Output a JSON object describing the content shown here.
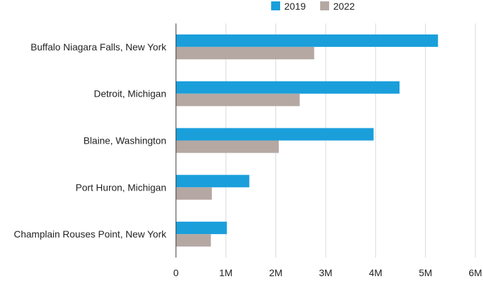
{
  "chart_data": {
    "type": "bar",
    "orientation": "horizontal",
    "categories": [
      "Buffalo Niagara Falls, New York",
      "Detroit, Michigan",
      "Blaine, Washington",
      "Port Huron, Michigan",
      "Champlain Rouses Point, New York"
    ],
    "series": [
      {
        "name": "2019",
        "color": "#1a9fdb",
        "values": [
          5250000,
          4480000,
          3960000,
          1470000,
          1020000
        ]
      },
      {
        "name": "2022",
        "color": "#b5a8a3",
        "values": [
          2770000,
          2480000,
          2060000,
          720000,
          700000
        ]
      }
    ],
    "xlim": [
      0,
      6000000
    ],
    "xticks": [
      0,
      1000000,
      2000000,
      3000000,
      4000000,
      5000000,
      6000000
    ],
    "xtick_labels": [
      "0",
      "1M",
      "2M",
      "3M",
      "4M",
      "5M",
      "6M"
    ],
    "title": "",
    "xlabel": "",
    "ylabel": "",
    "grid": "vertical",
    "legend_position": "top-right"
  }
}
